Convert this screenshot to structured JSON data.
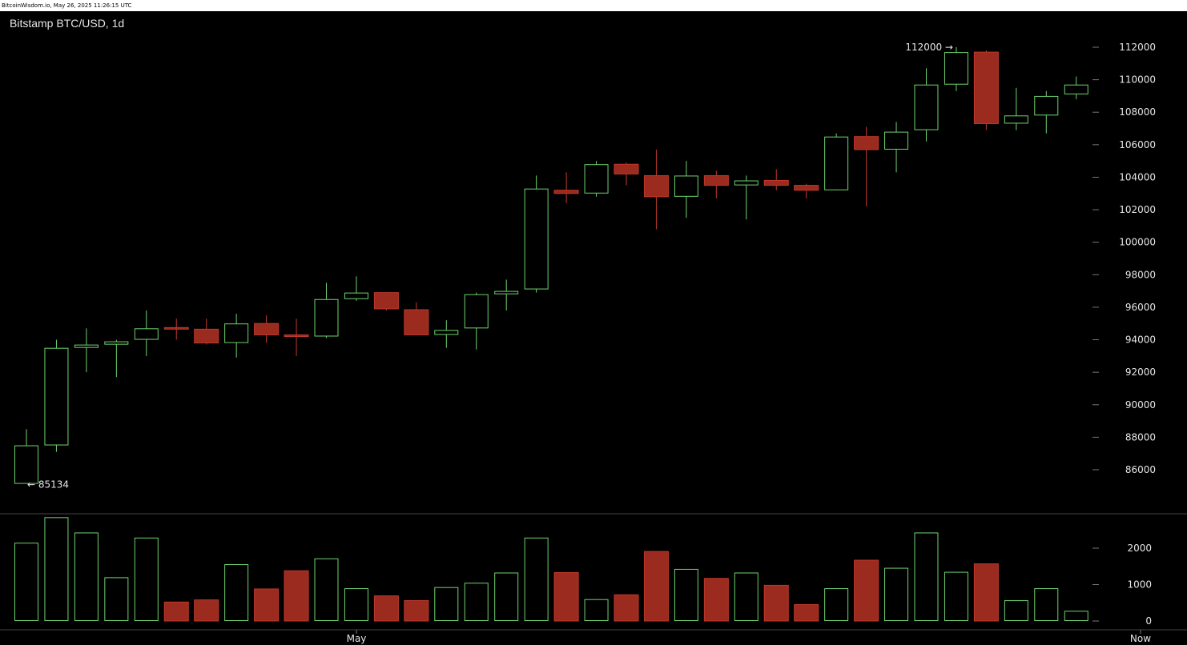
{
  "header": {
    "timestamp_line": "BitcoinWisdom.io, May 26, 2025 11:26:15 UTC"
  },
  "colors": {
    "up": "#6fd36f",
    "down": "#9b2a1f",
    "down_wick": "#c0392b",
    "background": "#000000",
    "separator": "#444444"
  },
  "chart_data": {
    "type": "candlestick",
    "title": "Bitstamp BTC/USD, 1d",
    "price_axis": {
      "ticks": [
        86000,
        88000,
        90000,
        92000,
        94000,
        96000,
        98000,
        100000,
        102000,
        104000,
        106000,
        108000,
        110000,
        112000
      ],
      "range": [
        84400,
        112700
      ]
    },
    "volume_axis": {
      "ticks": [
        0,
        1000,
        2000
      ],
      "range": [
        0,
        2800
      ]
    },
    "x_labels": [
      "May",
      "Now"
    ],
    "annotations": {
      "high_label": "112000 →",
      "low_label": "← 85134"
    },
    "candles": [
      {
        "o": 85134,
        "h": 88500,
        "l": 85134,
        "c": 87500,
        "v": 2150
      },
      {
        "o": 87500,
        "h": 94000,
        "l": 87100,
        "c": 93500,
        "v": 2850
      },
      {
        "o": 93500,
        "h": 94700,
        "l": 92000,
        "c": 93700,
        "v": 2430
      },
      {
        "o": 93700,
        "h": 94000,
        "l": 91700,
        "c": 93900,
        "v": 1200
      },
      {
        "o": 94000,
        "h": 95800,
        "l": 93000,
        "c": 94700,
        "v": 2290
      },
      {
        "o": 94750,
        "h": 95300,
        "l": 94000,
        "c": 94700,
        "v": 520
      },
      {
        "o": 94650,
        "h": 95300,
        "l": 93700,
        "c": 93800,
        "v": 580
      },
      {
        "o": 93800,
        "h": 95600,
        "l": 92900,
        "c": 95000,
        "v": 1560
      },
      {
        "o": 95000,
        "h": 95500,
        "l": 93800,
        "c": 94300,
        "v": 880
      },
      {
        "o": 94300,
        "h": 95300,
        "l": 93000,
        "c": 94200,
        "v": 1380
      },
      {
        "o": 94200,
        "h": 97500,
        "l": 94100,
        "c": 96500,
        "v": 1720
      },
      {
        "o": 96500,
        "h": 97900,
        "l": 96400,
        "c": 96900,
        "v": 900
      },
      {
        "o": 96900,
        "h": 96900,
        "l": 95800,
        "c": 95900,
        "v": 690
      },
      {
        "o": 95850,
        "h": 96300,
        "l": 94300,
        "c": 94300,
        "v": 560
      },
      {
        "o": 94300,
        "h": 95200,
        "l": 93500,
        "c": 94600,
        "v": 930
      },
      {
        "o": 94700,
        "h": 96900,
        "l": 93400,
        "c": 96800,
        "v": 1050
      },
      {
        "o": 96800,
        "h": 97700,
        "l": 95800,
        "c": 97000,
        "v": 1330
      },
      {
        "o": 97100,
        "h": 104100,
        "l": 96900,
        "c": 103300,
        "v": 2290
      },
      {
        "o": 103200,
        "h": 104300,
        "l": 102400,
        "c": 103000,
        "v": 1330
      },
      {
        "o": 103000,
        "h": 105000,
        "l": 102800,
        "c": 104800,
        "v": 600
      },
      {
        "o": 104800,
        "h": 104900,
        "l": 103500,
        "c": 104200,
        "v": 720
      },
      {
        "o": 104100,
        "h": 105700,
        "l": 100800,
        "c": 102800,
        "v": 1910
      },
      {
        "o": 102800,
        "h": 105000,
        "l": 101500,
        "c": 104100,
        "v": 1430
      },
      {
        "o": 104100,
        "h": 104400,
        "l": 102700,
        "c": 103500,
        "v": 1170
      },
      {
        "o": 103500,
        "h": 104100,
        "l": 101400,
        "c": 103800,
        "v": 1330
      },
      {
        "o": 103800,
        "h": 104500,
        "l": 103200,
        "c": 103500,
        "v": 980
      },
      {
        "o": 103500,
        "h": 103600,
        "l": 102700,
        "c": 103200,
        "v": 450
      },
      {
        "o": 103200,
        "h": 106700,
        "l": 103200,
        "c": 106500,
        "v": 900
      },
      {
        "o": 106500,
        "h": 107100,
        "l": 102200,
        "c": 105700,
        "v": 1670
      },
      {
        "o": 105700,
        "h": 107400,
        "l": 104300,
        "c": 106800,
        "v": 1460
      },
      {
        "o": 106900,
        "h": 110700,
        "l": 106200,
        "c": 109700,
        "v": 2430
      },
      {
        "o": 109700,
        "h": 112000,
        "l": 109300,
        "c": 111700,
        "v": 1350
      },
      {
        "o": 111700,
        "h": 111800,
        "l": 106900,
        "c": 107300,
        "v": 1570
      },
      {
        "o": 107300,
        "h": 109500,
        "l": 106900,
        "c": 107800,
        "v": 570
      },
      {
        "o": 107800,
        "h": 109300,
        "l": 106700,
        "c": 109000,
        "v": 900
      },
      {
        "o": 109100,
        "h": 110200,
        "l": 108800,
        "c": 109700,
        "v": 280
      }
    ]
  }
}
